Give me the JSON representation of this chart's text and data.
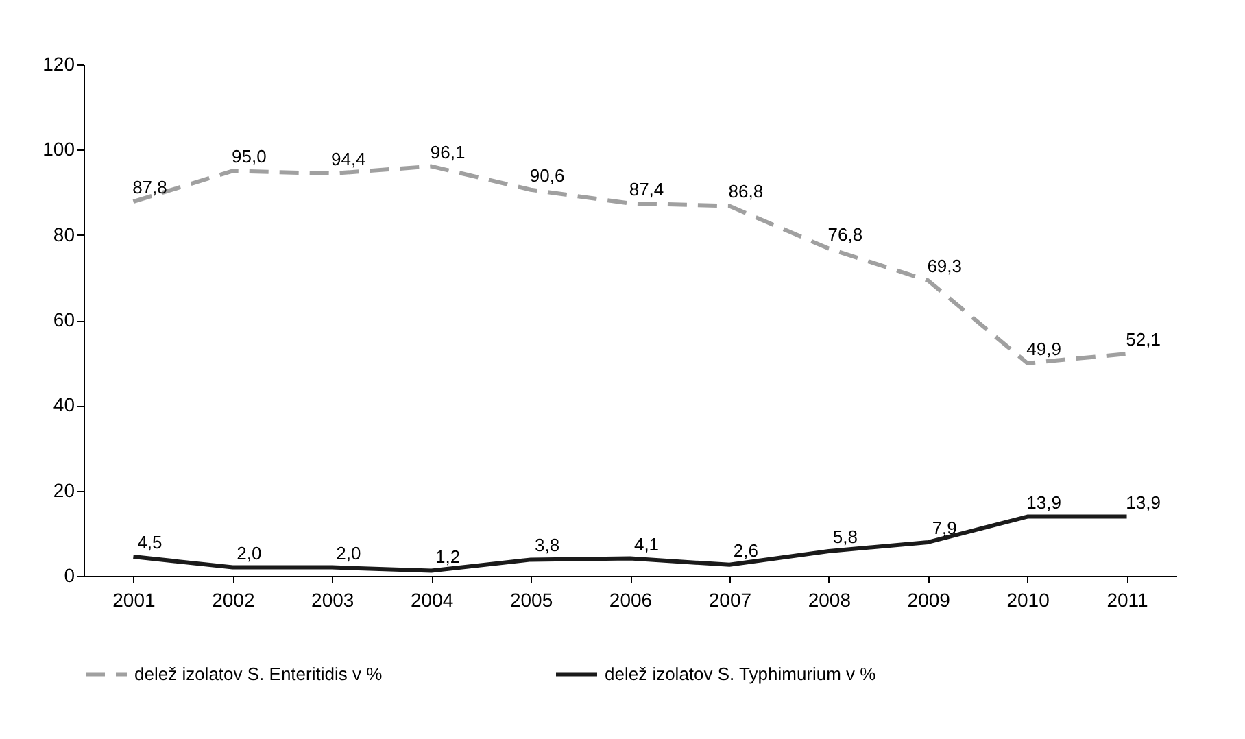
{
  "chart_data": {
    "type": "line",
    "categories": [
      "2001",
      "2002",
      "2003",
      "2004",
      "2005",
      "2006",
      "2007",
      "2008",
      "2009",
      "2010",
      "2011"
    ],
    "series": [
      {
        "name": "delež izolatov S. Enteritidis v %",
        "color": "#a0a0a0",
        "line_style": "dashed",
        "values": [
          87.8,
          95.0,
          94.4,
          96.1,
          90.6,
          87.4,
          86.8,
          76.8,
          69.3,
          49.9,
          52.1
        ],
        "value_labels": [
          "87,8",
          "95,0",
          "94,4",
          "96,1",
          "90,6",
          "87,4",
          "86,8",
          "76,8",
          "69,3",
          "49,9",
          "52,1"
        ]
      },
      {
        "name": "delež izolatov S. Typhimurium v %",
        "color": "#1a1a1a",
        "line_style": "solid",
        "values": [
          4.5,
          2.0,
          2.0,
          1.2,
          3.8,
          4.1,
          2.6,
          5.8,
          7.9,
          13.9,
          13.9
        ],
        "value_labels": [
          "4,5",
          "2,0",
          "2,0",
          "1,2",
          "3,8",
          "4,1",
          "2,6",
          "5,8",
          "7,9",
          "13,9",
          "13,9"
        ]
      }
    ],
    "ylim": [
      0,
      120
    ],
    "yticks": [
      0,
      20,
      40,
      60,
      80,
      100,
      120
    ],
    "grid": false,
    "legend": "bottom",
    "marker": "none"
  }
}
